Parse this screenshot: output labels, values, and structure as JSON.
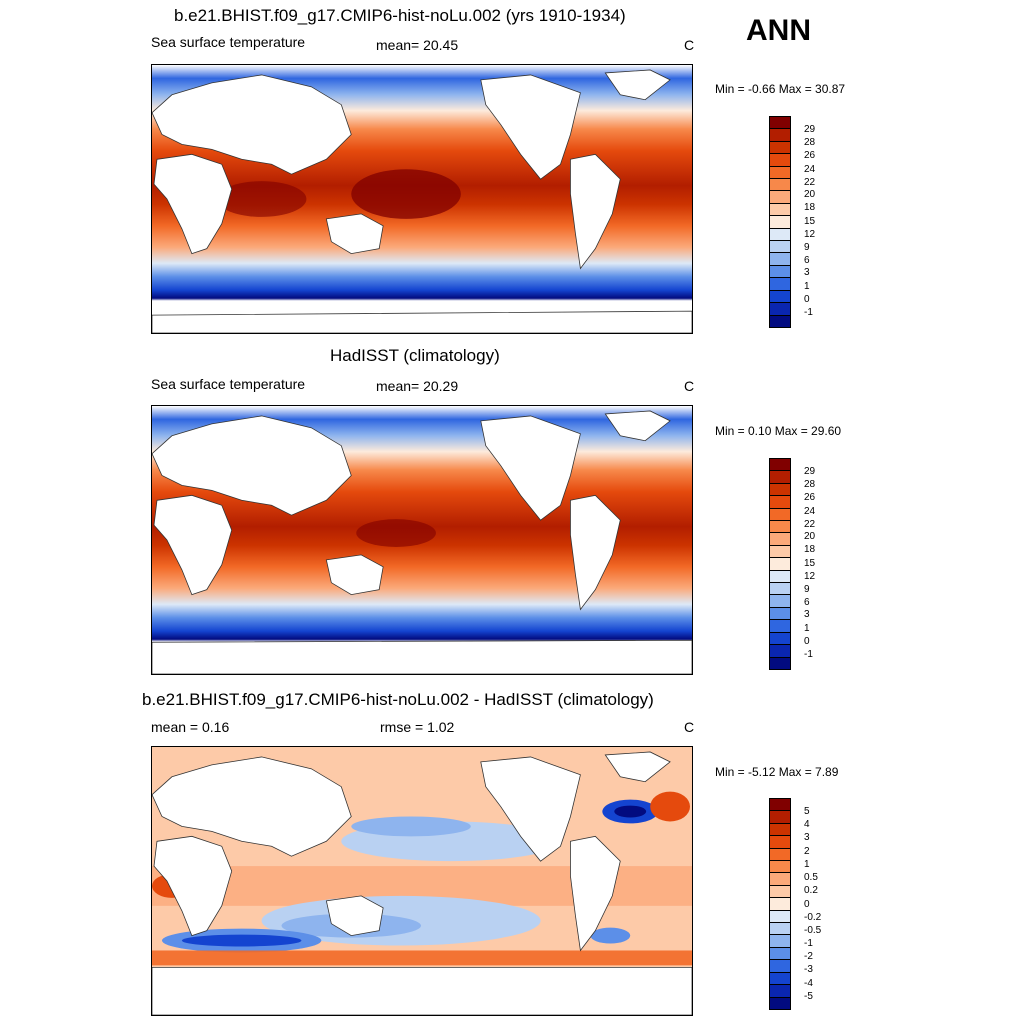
{
  "season": "ANN",
  "panels": [
    {
      "title": "b.e21.BHIST.f09_g17.CMIP6-hist-noLu.002 (yrs 1910-1934)",
      "left": "Sea surface temperature",
      "center": "mean=  20.45",
      "unit": "C",
      "minmax": "Min =  -0.66 Max =  30.87"
    },
    {
      "title": "HadISST (climatology)",
      "left": "Sea surface temperature",
      "center": "mean=  20.29",
      "unit": "C",
      "minmax": "Min =   0.10 Max =  29.60"
    },
    {
      "title": "b.e21.BHIST.f09_g17.CMIP6-hist-noLu.002 - HadISST (climatology)",
      "left": "mean =   0.16",
      "center": "rmse =   1.02",
      "unit": "C",
      "minmax": "Min =  -5.12 Max =   7.89"
    }
  ],
  "colorbar_abs": {
    "labels": [
      "29",
      "28",
      "26",
      "24",
      "22",
      "20",
      "18",
      "15",
      "12",
      "9",
      "6",
      "3",
      "1",
      "0",
      "-1"
    ],
    "colors": [
      "#800000",
      "#b21e00",
      "#cc3300",
      "#e54a0d",
      "#f26926",
      "#f7884a",
      "#fba97a",
      "#fdcaa8",
      "#fdebdc",
      "#dde9f7",
      "#b9d1f2",
      "#8eb4ee",
      "#5c8fe8",
      "#2f66e0",
      "#1444d0",
      "#0a26b0",
      "#020b80"
    ]
  },
  "colorbar_diff": {
    "labels": [
      "5",
      "4",
      "3",
      "2",
      "1",
      "0.5",
      "0.2",
      "0",
      "-0.2",
      "-0.5",
      "-1",
      "-2",
      "-3",
      "-4",
      "-5"
    ],
    "colors": [
      "#800000",
      "#b21e00",
      "#cc3300",
      "#e54a0d",
      "#f26926",
      "#f7884a",
      "#fba97a",
      "#fdcaa8",
      "#fdebdc",
      "#dde9f7",
      "#b9d1f2",
      "#8eb4ee",
      "#5c8fe8",
      "#2f66e0",
      "#1444d0",
      "#0a26b0",
      "#020b80"
    ]
  }
}
